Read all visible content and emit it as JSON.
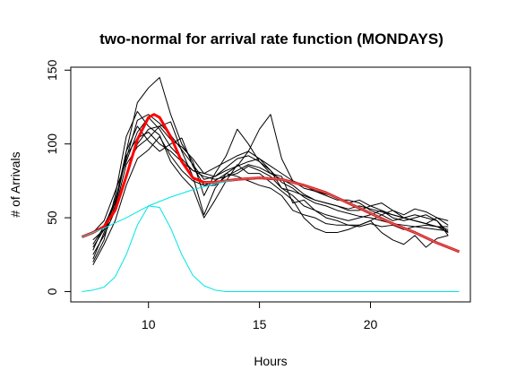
{
  "chart_data": {
    "type": "line",
    "title": "two-normal for arrival rate function (MONDAYS)",
    "xlabel": "Hours",
    "ylabel": "# of Arrivals",
    "xlim": [
      6.5,
      24.5
    ],
    "ylim": [
      -7,
      152
    ],
    "xticks": [
      10,
      15,
      20
    ],
    "yticks": [
      0,
      50,
      100,
      150
    ],
    "grid": false,
    "legend": "none",
    "colors": {
      "observed": "#000000",
      "total_fit": "#ff0000",
      "overlay_fit": "#b07070",
      "components": "#00e5e5",
      "axes": "#000000"
    },
    "series": [
      {
        "x": [
          7.5,
          8.0,
          8.5,
          9.0,
          9.5,
          10.0,
          10.5,
          11.0,
          11.5,
          12.0,
          12.5,
          13.0,
          13.5,
          14.0,
          14.5,
          15.0,
          15.5,
          16.0,
          16.5,
          17.0,
          17.5,
          18.0,
          18.5,
          19.0,
          19.5,
          20.0,
          20.5,
          21.0,
          21.5,
          22.0,
          22.5,
          23.0,
          23.5
        ],
        "values": [
          40,
          48,
          68,
          88,
          108,
          118,
          110,
          98,
          90,
          82,
          80,
          78,
          82,
          85,
          88,
          90,
          82,
          70,
          68,
          65,
          62,
          60,
          58,
          55,
          55,
          58,
          55,
          52,
          50,
          48,
          46,
          44,
          42
        ]
      },
      {
        "x": [
          7.5,
          8.0,
          8.5,
          9.0,
          9.5,
          10.0,
          10.5,
          11.0,
          11.5,
          12.0,
          12.5,
          13.0,
          13.5,
          14.0,
          14.5,
          15.0,
          15.5,
          16.0,
          16.5,
          17.0,
          17.5,
          18.0,
          18.5,
          19.0,
          19.5,
          20.0,
          20.5,
          21.0,
          21.5,
          22.0,
          22.5,
          23.0,
          23.5
        ],
        "values": [
          30,
          42,
          60,
          95,
          128,
          138,
          145,
          120,
          100,
          88,
          65,
          80,
          92,
          110,
          100,
          88,
          80,
          78,
          60,
          62,
          55,
          50,
          48,
          45,
          45,
          48,
          52,
          55,
          50,
          48,
          46,
          50,
          48
        ]
      },
      {
        "x": [
          7.5,
          8.0,
          8.5,
          9.0,
          9.5,
          10.0,
          10.5,
          11.0,
          11.5,
          12.0,
          12.5,
          13.0,
          13.5,
          14.0,
          14.5,
          15.0,
          15.5,
          16.0,
          16.5,
          17.0,
          17.5,
          18.0,
          18.5,
          19.0,
          19.5,
          20.0,
          20.5,
          21.0,
          21.5,
          22.0,
          22.5,
          23.0,
          23.5
        ],
        "values": [
          25,
          38,
          55,
          80,
          100,
          110,
          112,
          115,
          95,
          78,
          52,
          70,
          80,
          85,
          95,
          110,
          120,
          90,
          75,
          70,
          68,
          65,
          62,
          62,
          60,
          55,
          52,
          48,
          50,
          52,
          50,
          48,
          40
        ]
      },
      {
        "x": [
          7.5,
          8.0,
          8.5,
          9.0,
          9.5,
          10.0,
          10.5,
          11.0,
          11.5,
          12.0,
          12.5,
          13.0,
          13.5,
          14.0,
          14.5,
          15.0,
          15.5,
          16.0,
          16.5,
          17.0,
          17.5,
          18.0,
          18.5,
          19.0,
          19.5,
          20.0,
          20.5,
          21.0,
          21.5,
          22.0,
          22.5,
          23.0,
          23.5
        ],
        "values": [
          20,
          35,
          65,
          105,
          122,
          112,
          106,
          88,
          78,
          70,
          50,
          62,
          75,
          86,
          80,
          80,
          74,
          68,
          62,
          50,
          43,
          40,
          40,
          42,
          45,
          48,
          40,
          35,
          32,
          38,
          30,
          36,
          38
        ]
      },
      {
        "x": [
          7.5,
          8.0,
          8.5,
          9.0,
          9.5,
          10.0,
          10.5,
          11.0,
          11.5,
          12.0,
          12.5,
          13.0,
          13.5,
          14.0,
          14.5,
          15.0,
          15.5,
          16.0,
          16.5,
          17.0,
          17.5,
          18.0,
          18.5,
          19.0,
          19.5,
          20.0,
          20.5,
          21.0,
          21.5,
          22.0,
          22.5,
          23.0,
          23.5
        ],
        "values": [
          18,
          32,
          48,
          72,
          90,
          96,
          105,
          92,
          82,
          75,
          72,
          72,
          78,
          80,
          85,
          82,
          78,
          70,
          65,
          58,
          55,
          52,
          50,
          48,
          50,
          52,
          55,
          50,
          48,
          50,
          52,
          48,
          38
        ]
      },
      {
        "x": [
          7.5,
          8.0,
          8.5,
          9.0,
          9.5,
          10.0,
          10.5,
          11.0,
          11.5,
          12.0,
          12.5,
          13.0,
          13.5,
          14.0,
          14.5,
          15.0,
          15.5,
          16.0,
          16.5,
          17.0,
          17.5,
          18.0,
          18.5,
          19.0,
          19.5,
          20.0,
          20.5,
          21.0,
          21.5,
          22.0,
          22.5,
          23.0,
          23.5
        ],
        "values": [
          28,
          45,
          60,
          95,
          112,
          102,
          95,
          100,
          104,
          85,
          72,
          75,
          80,
          78,
          75,
          72,
          70,
          65,
          55,
          52,
          50,
          46,
          45,
          45,
          44,
          46,
          44,
          45,
          42,
          44,
          45,
          44,
          44
        ]
      },
      {
        "x": [
          7.5,
          8.0,
          8.5,
          9.0,
          9.5,
          10.0,
          10.5,
          11.0,
          11.5,
          12.0,
          12.5,
          13.0,
          13.5,
          14.0,
          14.5,
          15.0,
          15.5,
          16.0,
          16.5,
          17.0,
          17.5,
          18.0,
          18.5,
          19.0,
          19.5,
          20.0,
          20.5,
          21.0,
          21.5,
          22.0,
          22.5,
          23.0,
          23.5
        ],
        "values": [
          35,
          42,
          56,
          86,
          98,
          104,
          112,
          103,
          98,
          90,
          80,
          84,
          88,
          92,
          95,
          90,
          85,
          80,
          75,
          72,
          68,
          66,
          64,
          60,
          62,
          58,
          60,
          55,
          52,
          56,
          54,
          50,
          45
        ]
      },
      {
        "x": [
          7.5,
          8.0,
          8.5,
          9.0,
          9.5,
          10.0,
          10.5,
          11.0,
          11.5,
          12.0,
          12.5,
          13.0,
          13.5,
          14.0,
          14.5,
          15.0,
          15.5,
          16.0,
          16.5,
          17.0,
          17.5,
          18.0,
          18.5,
          19.0,
          19.5,
          20.0,
          20.5,
          21.0,
          21.5,
          22.0,
          22.5,
          23.0,
          23.5
        ],
        "values": [
          22,
          40,
          58,
          92,
          104,
          108,
          100,
          95,
          88,
          82,
          78,
          76,
          78,
          82,
          86,
          84,
          80,
          76,
          72,
          66,
          62,
          60,
          58,
          56,
          58,
          56,
          54,
          52,
          50,
          48,
          46,
          44,
          40
        ]
      },
      {
        "x": [
          7.5,
          8.0,
          8.5,
          9.0,
          9.5,
          10.0,
          10.5,
          11.0,
          11.5,
          12.0,
          12.5,
          13.0,
          13.5,
          14.0,
          14.5,
          15.0,
          15.5,
          16.0,
          16.5,
          17.0,
          17.5,
          18.0,
          18.5,
          19.0,
          19.5,
          20.0,
          20.5,
          21.0,
          21.5,
          22.0,
          22.5,
          23.0,
          23.5
        ],
        "values": [
          32,
          44,
          62,
          90,
          116,
          120,
          114,
          106,
          96,
          86,
          76,
          78,
          84,
          90,
          92,
          88,
          82,
          74,
          70,
          64,
          60,
          58,
          55,
          53,
          51,
          50,
          48,
          46,
          45,
          44,
          43,
          42,
          41
        ]
      },
      {
        "x": [
          7.0,
          7.5,
          8.0,
          8.5,
          9.0,
          9.5,
          10.0,
          10.25,
          10.5,
          11.0,
          11.5,
          12.0,
          12.5,
          13.0,
          14.0,
          15.0,
          16.0,
          17.0,
          18.0,
          19.0,
          20.0,
          21.0,
          22.0,
          23.0,
          24.0
        ],
        "values": [
          37,
          40,
          44,
          55,
          78,
          103,
          118,
          120,
          118,
          105,
          88,
          77,
          74,
          74,
          76,
          77,
          76,
          72,
          67,
          60,
          53,
          46,
          40,
          33,
          27
        ]
      },
      {
        "x": [
          7.0,
          8.0,
          9.0,
          10.0,
          11.0,
          12.0,
          12.5,
          13.0,
          14.0,
          15.0,
          16.0,
          17.0,
          18.0,
          19.0,
          20.0,
          21.0,
          22.0,
          23.0,
          24.0
        ],
        "values": [
          37,
          43,
          50,
          58,
          64,
          69,
          71,
          73,
          76,
          77,
          76,
          72,
          67,
          60,
          53,
          46,
          40,
          33,
          27
        ]
      },
      {
        "x": [
          7.0,
          7.5,
          8.0,
          8.5,
          9.0,
          9.5,
          10.0,
          10.5,
          11.0,
          11.5,
          12.0,
          12.5,
          13.0,
          13.5,
          14.0,
          15.0,
          16.0,
          17.0,
          18.0,
          19.0,
          20.0,
          21.0,
          22.0,
          23.0,
          24.0
        ],
        "values": [
          0,
          1,
          3,
          10,
          25,
          45,
          58,
          57,
          43,
          25,
          11,
          4,
          1,
          0,
          0,
          0,
          0,
          0,
          0,
          0,
          0,
          0,
          0,
          0,
          0
        ]
      }
    ]
  }
}
